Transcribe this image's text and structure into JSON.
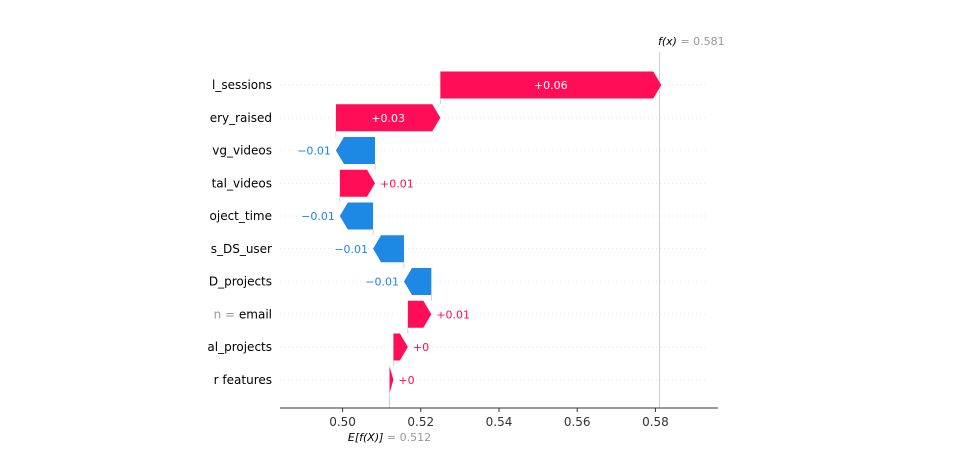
{
  "chart_data": {
    "type": "waterfall",
    "base_value": 0.512,
    "output_value": 0.581,
    "base_label": {
      "name": "E[f(X)]",
      "eq": "= 0.512"
    },
    "output_label": {
      "name": "f(x)",
      "eq": "= 0.581"
    },
    "xlim": [
      0.484,
      0.596
    ],
    "xticks": [
      0.5,
      0.52,
      0.54,
      0.56,
      0.58
    ],
    "tick_labels": [
      "0.50",
      "0.52",
      "0.54",
      "0.56",
      "0.58"
    ],
    "features": [
      {
        "label": "l_sessions",
        "contribution": 0.0565,
        "text": "+0.06"
      },
      {
        "label": "ery_raised",
        "contribution": 0.0267,
        "text": "+0.03"
      },
      {
        "label": "vg_videos",
        "contribution": -0.01,
        "text": "−0.01"
      },
      {
        "label": "tal_videos",
        "contribution": 0.009,
        "text": "+0.01"
      },
      {
        "label": "oject_time",
        "contribution": -0.0085,
        "text": "−0.01"
      },
      {
        "label": "s_DS_user",
        "contribution": -0.0079,
        "text": "−0.01"
      },
      {
        "label": "D_projects",
        "contribution": -0.007,
        "text": "−0.01"
      },
      {
        "label": "email",
        "label_prefix": "n = ",
        "contribution": 0.006,
        "text": "+0.01"
      },
      {
        "label": "al_projects",
        "contribution": 0.0037,
        "text": "+0"
      },
      {
        "label": "r features",
        "contribution": 0.001,
        "text": "+0"
      }
    ],
    "colors": {
      "positive": "#ff0d57",
      "negative": "#1e88e5",
      "axis": "#333333",
      "grid": "#e5e5e5",
      "guide": "#bbbbbb"
    }
  }
}
